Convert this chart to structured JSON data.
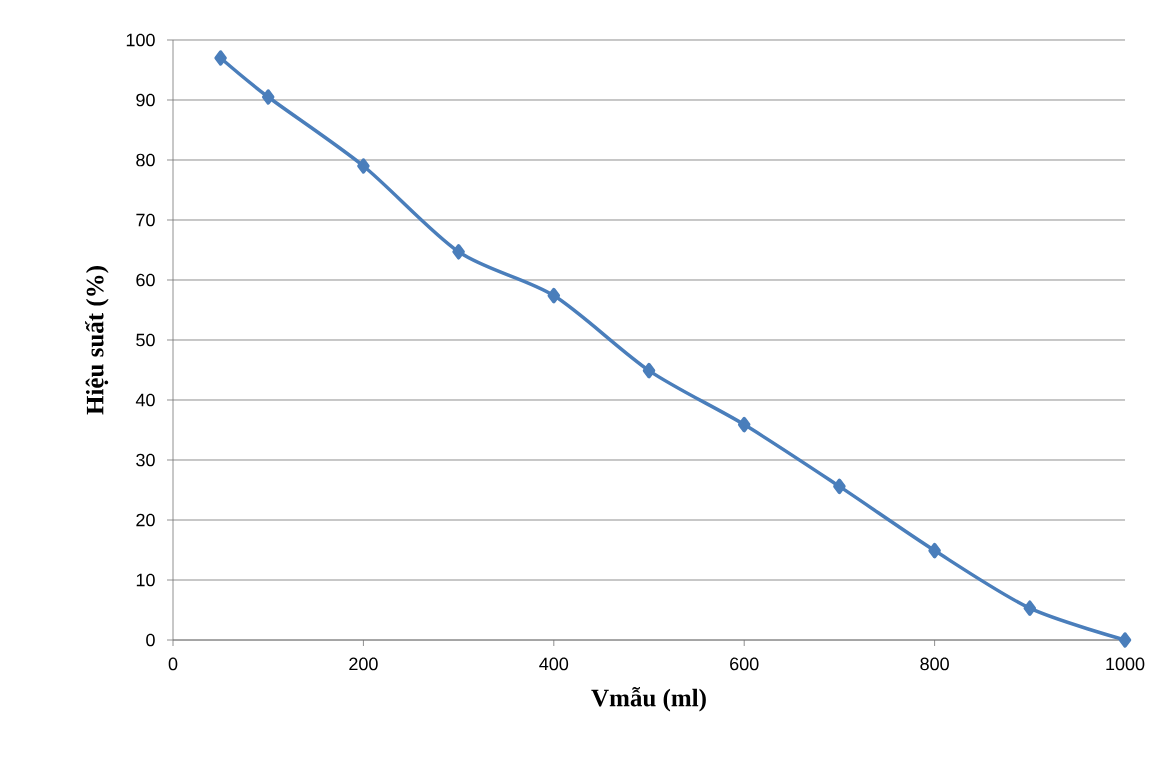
{
  "chart_data": {
    "type": "line",
    "xlabel": "Vmẫu (ml)",
    "ylabel": "Hiệu suất (%)",
    "x": [
      50,
      100,
      200,
      300,
      400,
      500,
      600,
      700,
      800,
      900,
      1000
    ],
    "series": [
      {
        "color": "#4a7ebb",
        "values": [
          97,
          90.5,
          79,
          64.7,
          57.4,
          44.9,
          35.9,
          25.6,
          14.9,
          5.3,
          0
        ]
      }
    ],
    "xlim": [
      0,
      1000
    ],
    "xticks": [
      0,
      200,
      400,
      600,
      800,
      1000
    ],
    "ylim": [
      0,
      100
    ],
    "yticks": [
      0,
      10,
      20,
      30,
      40,
      50,
      60,
      70,
      80,
      90,
      100
    ],
    "grid": "y",
    "marker": "diamond",
    "line_style": "solid"
  }
}
